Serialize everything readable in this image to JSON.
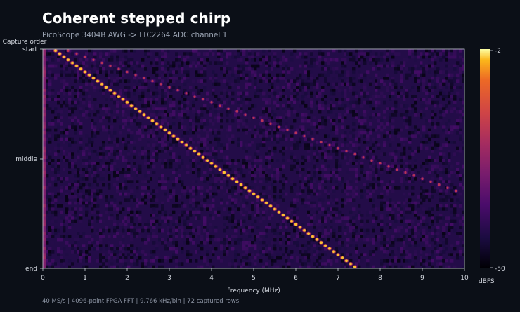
{
  "header": {
    "title": "Coherent stepped chirp",
    "subtitle": "PicoScope 3404B AWG -> LTC2264 ADC channel 1"
  },
  "footer": {
    "text": "40 MS/s  |  4096-point FPGA FFT  |  9.766 kHz/bin  |  72 captured rows"
  },
  "chart_data": {
    "type": "heatmap",
    "title": "Coherent stepped chirp",
    "subtitle": "PicoScope 3404B AWG -> LTC2264 ADC channel 1",
    "xlabel": "Frequency (MHz)",
    "ylabel": "Capture order",
    "xlim": [
      0,
      10
    ],
    "x_ticks": [
      "0",
      "1",
      "2",
      "3",
      "4",
      "5",
      "6",
      "7",
      "8",
      "9",
      "10"
    ],
    "y_tick_labels": [
      "start",
      "middle",
      "end"
    ],
    "colorbar": {
      "label": "dBFS",
      "min": -50,
      "max": -2,
      "tick_labels": [
        "-2",
        "-50"
      ],
      "colormap": "inferno"
    },
    "rows": 72,
    "noise_floor_dbfs": -42,
    "series": [
      {
        "tones_mhz": [
          0.3,
          0.4,
          0.5,
          0.6,
          0.7,
          0.8,
          0.9,
          1.0,
          1.1,
          1.2,
          1.3,
          1.4,
          1.5,
          1.6,
          1.7,
          1.8,
          1.9,
          2.0,
          2.1,
          2.2,
          2.3,
          2.4,
          2.5,
          2.6,
          2.7,
          2.8,
          2.9,
          3.0,
          3.1,
          3.2,
          3.3,
          3.4,
          3.5,
          3.6,
          3.7,
          3.8,
          3.9,
          4.0,
          4.1,
          4.2,
          4.3,
          4.4,
          4.5,
          4.6,
          4.7,
          4.8,
          4.9,
          5.0,
          5.1,
          5.2,
          5.3,
          5.4,
          5.5,
          5.6,
          5.7,
          5.8,
          5.9,
          6.0,
          6.1,
          6.2,
          6.3,
          6.4,
          6.5,
          6.6,
          6.7,
          6.8,
          6.9,
          7.0,
          7.1,
          7.2,
          7.3,
          7.4
        ],
        "peak_dbfs": -4
      },
      {
        "tones_mhz": [
          0.6,
          0.8,
          1.0,
          1.2,
          1.4,
          1.6,
          1.8,
          2.0,
          2.2,
          2.4,
          2.6,
          2.8,
          3.0,
          3.2,
          3.4,
          3.6,
          3.8,
          4.0,
          4.2,
          4.4,
          4.6,
          4.8,
          5.0,
          5.2,
          5.4,
          5.6,
          5.8,
          6.0,
          6.2,
          6.4,
          6.6,
          6.8,
          7.0,
          7.2,
          7.4,
          7.6,
          7.8,
          8.0,
          8.2,
          8.4,
          8.6,
          8.8,
          9.0,
          9.2,
          9.4,
          9.6,
          9.8
        ],
        "peak_dbfs": -20
      }
    ]
  }
}
